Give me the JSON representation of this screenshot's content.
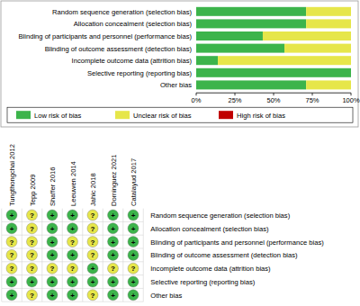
{
  "chart_data": [
    {
      "type": "bar",
      "orientation": "horizontal",
      "stacked": true,
      "categories": [
        "Random sequence generation (selection bias)",
        "Allocation concealment (selection bias)",
        "Blinding of participants and personnel (performance bias)",
        "Blinding of outcome assessment (detection bias)",
        "Incomplete outcome data (attrition bias)",
        "Selective reporting (reporting bias)",
        "Other bias"
      ],
      "series": [
        {
          "name": "Low risk of bias",
          "color": "#3cb44b",
          "values": [
            71,
            71,
            43,
            57,
            14,
            100,
            71
          ]
        },
        {
          "name": "Unclear risk of bias",
          "color": "#e6e64a",
          "values": [
            29,
            29,
            57,
            43,
            86,
            0,
            29
          ]
        },
        {
          "name": "High risk of bias",
          "color": "#c00000",
          "values": [
            0,
            0,
            0,
            0,
            0,
            0,
            0
          ]
        }
      ],
      "xlim": [
        0,
        100
      ],
      "xticks": [
        {
          "value": 0,
          "label": "0%"
        },
        {
          "value": 25,
          "label": "25%"
        },
        {
          "value": 50,
          "label": "50%"
        },
        {
          "value": 75,
          "label": "75%"
        },
        {
          "value": 100,
          "label": "100%"
        }
      ],
      "legend": "bottom"
    },
    {
      "type": "grid",
      "x": [
        "Tungthongchai 2012",
        "Tepp 2009",
        "Shaffer 2016",
        "Leeuwen 2014",
        "Jahic 2018",
        "Dominguez 2021",
        "Catalayud 2017"
      ],
      "categories": [
        "Random sequence generation (selection bias)",
        "Allocation concealment (selection bias)",
        "Blinding of participants and personnel (performance bias)",
        "Blinding of outcome assessment (detection bias)",
        "Incomplete outcome data (attrition bias)",
        "Selective reporting (reporting bias)",
        "Other bias"
      ],
      "cells": [
        [
          "+",
          "?",
          "+",
          "+",
          "?",
          "+",
          "+"
        ],
        [
          "+",
          "?",
          "+",
          "+",
          "?",
          "+",
          "+"
        ],
        [
          "?",
          "?",
          "+",
          "?",
          "?",
          "+",
          "+"
        ],
        [
          "?",
          "?",
          "+",
          "+",
          "?",
          "+",
          "+"
        ],
        [
          "?",
          "?",
          "?",
          "?",
          "+",
          "?",
          "?"
        ],
        [
          "+",
          "+",
          "+",
          "+",
          "+",
          "+",
          "+"
        ],
        [
          "+",
          "?",
          "+",
          "+",
          "?",
          "+",
          "+"
        ]
      ]
    }
  ]
}
